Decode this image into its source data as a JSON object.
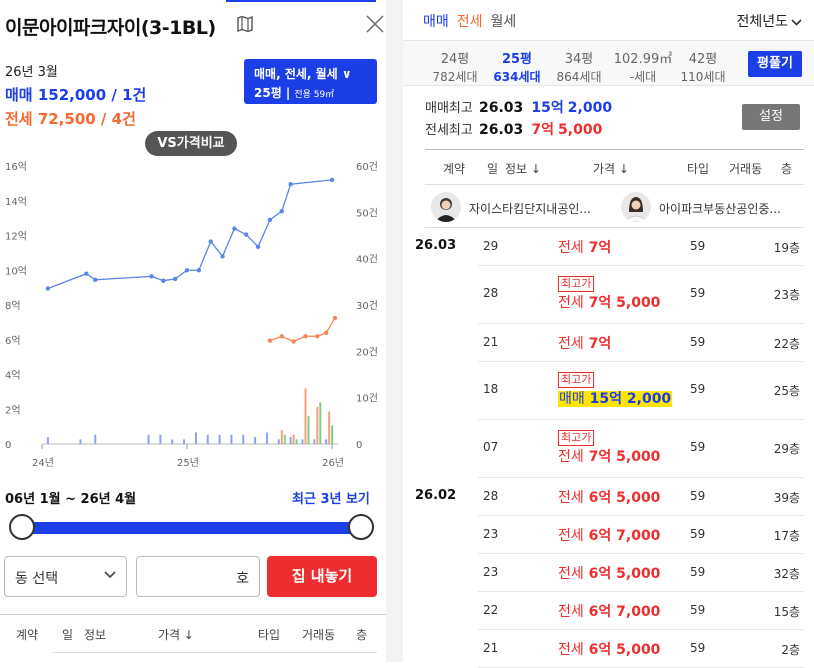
{
  "header": {
    "title": "이문아이파크자이(3-1BL)",
    "icons": [
      "map-icon",
      "close-icon"
    ]
  },
  "selected": {
    "date": "26년 3월",
    "sale_label": "매매 152,000 / 1건",
    "jeonse_label": "전세 72,500 / 4건"
  },
  "filter": {
    "types": "매매, 전세, 월세 ∨",
    "size": "25평",
    "size_detail": "전용 59㎡"
  },
  "vs_button": "VS가격비교",
  "chart_data": {
    "type": "line",
    "title": "",
    "x_ticks": [
      "24년",
      "25년",
      "26년"
    ],
    "y_left_ticks": [
      "16억",
      "14억",
      "12억",
      "10억",
      "8억",
      "6억",
      "4억",
      "2억",
      "0"
    ],
    "y_right_ticks": [
      "60건",
      "50건",
      "40건",
      "30건",
      "20건",
      "10건",
      "0"
    ],
    "ylim_left": [
      0,
      16
    ],
    "ylim_right": [
      0,
      60
    ],
    "xlim": [
      0,
      1
    ],
    "series": [
      {
        "name": "매매",
        "color": "#5b86e5",
        "axis": "left",
        "points": [
          [
            0.02,
            8.95
          ],
          [
            0.15,
            9.8
          ],
          [
            0.18,
            9.45
          ],
          [
            0.37,
            9.65
          ],
          [
            0.41,
            9.4
          ],
          [
            0.45,
            9.5
          ],
          [
            0.49,
            10.0
          ],
          [
            0.53,
            10.0
          ],
          [
            0.57,
            11.65
          ],
          [
            0.61,
            10.8
          ],
          [
            0.65,
            12.4
          ],
          [
            0.69,
            12.05
          ],
          [
            0.73,
            11.35
          ],
          [
            0.77,
            12.9
          ],
          [
            0.81,
            13.4
          ],
          [
            0.84,
            14.95
          ],
          [
            0.98,
            15.2
          ]
        ]
      },
      {
        "name": "전세",
        "color": "#f4865a",
        "axis": "left",
        "points": [
          [
            0.77,
            5.95
          ],
          [
            0.81,
            6.2
          ],
          [
            0.85,
            5.9
          ],
          [
            0.89,
            6.2
          ],
          [
            0.93,
            6.2
          ],
          [
            0.96,
            6.4
          ],
          [
            0.99,
            7.25
          ]
        ]
      }
    ],
    "volume": {
      "axis": "right",
      "sale_color": "#8ca4ef",
      "jeonse_color": "#f4a07a",
      "monthly_color": "#7fcf7f",
      "bars": [
        {
          "x": 0.02,
          "sale": 1.5
        },
        {
          "x": 0.13,
          "sale": 1
        },
        {
          "x": 0.18,
          "sale": 2
        },
        {
          "x": 0.36,
          "sale": 2
        },
        {
          "x": 0.4,
          "sale": 2
        },
        {
          "x": 0.44,
          "sale": 1
        },
        {
          "x": 0.48,
          "sale": 1
        },
        {
          "x": 0.52,
          "sale": 2.5
        },
        {
          "x": 0.56,
          "sale": 2
        },
        {
          "x": 0.6,
          "sale": 2
        },
        {
          "x": 0.64,
          "sale": 2
        },
        {
          "x": 0.68,
          "sale": 2
        },
        {
          "x": 0.72,
          "sale": 1.5
        },
        {
          "x": 0.76,
          "sale": 2.5
        },
        {
          "x": 0.8,
          "sale": 1,
          "jeonse": 3,
          "monthly": 2
        },
        {
          "x": 0.84,
          "sale": 1.5,
          "jeonse": 2,
          "monthly": 1
        },
        {
          "x": 0.88,
          "sale": 1,
          "jeonse": 12,
          "monthly": 6
        },
        {
          "x": 0.92,
          "sale": 1,
          "jeonse": 8,
          "monthly": 9
        },
        {
          "x": 0.96,
          "sale": 1,
          "jeonse": 7,
          "monthly": 4
        }
      ]
    }
  },
  "range": {
    "label": "06년 1월 ~ 26년 4월",
    "recent_link": "최근 3년 보기"
  },
  "controls": {
    "dong_select": "동 선택",
    "ho_input": "호",
    "collect_button": "집 내놓기"
  },
  "left_table_headers": [
    "계약",
    "일",
    "정보",
    "가격 ↓",
    "타입",
    "거래동",
    "층"
  ],
  "right": {
    "trade_tabs": [
      "매매",
      "전세",
      "월세"
    ],
    "year_select": "전체년도",
    "sizes": [
      {
        "p": "24평",
        "h": "782세대",
        "active": false
      },
      {
        "p": "25평",
        "h": "634세대",
        "active": true
      },
      {
        "p": "34평",
        "h": "864세대",
        "active": false
      },
      {
        "p": "102.99㎡",
        "h": "-세대",
        "active": false
      },
      {
        "p": "42평",
        "h": "110세대",
        "active": false
      }
    ],
    "pyeong_button": "평풀기",
    "max_sale": {
      "label": "매매최고",
      "date": "26.03",
      "eok": "15억",
      "rest": "2,000"
    },
    "max_jeonse": {
      "label": "전세최고",
      "date": "26.03",
      "eok": "7억",
      "rest": "5,000"
    },
    "setting_button": "설정",
    "headers": [
      "계약",
      "일",
      "정보 ↓",
      "가격 ↓",
      "타입",
      "거래동",
      "층"
    ],
    "agents": [
      "자이스타킴단지내공인...",
      "아이파크부동산공인중..."
    ],
    "max_badge": "최고가",
    "rows": [
      {
        "month": "26.03",
        "day": "29",
        "type_label": "전세",
        "eok": "7억",
        "rest": "",
        "kind": "jeonse",
        "area": "59",
        "floor": "19층",
        "max": false,
        "hl": false
      },
      {
        "month": "",
        "day": "28",
        "type_label": "전세",
        "eok": "7억",
        "rest": "5,000",
        "kind": "jeonse",
        "area": "59",
        "floor": "23층",
        "max": true,
        "hl": false
      },
      {
        "month": "",
        "day": "21",
        "type_label": "전세",
        "eok": "7억",
        "rest": "",
        "kind": "jeonse",
        "area": "59",
        "floor": "22층",
        "max": false,
        "hl": false
      },
      {
        "month": "",
        "day": "18",
        "type_label": "매매",
        "eok": "15억",
        "rest": "2,000",
        "kind": "sale",
        "area": "59",
        "floor": "25층",
        "max": true,
        "hl": true
      },
      {
        "month": "",
        "day": "07",
        "type_label": "전세",
        "eok": "7억",
        "rest": "5,000",
        "kind": "jeonse",
        "area": "59",
        "floor": "29층",
        "max": true,
        "hl": false
      },
      {
        "month": "26.02",
        "day": "28",
        "type_label": "전세",
        "eok": "6억",
        "rest": "5,000",
        "kind": "jeonse",
        "area": "59",
        "floor": "39층",
        "max": false,
        "hl": false
      },
      {
        "month": "",
        "day": "23",
        "type_label": "전세",
        "eok": "6억",
        "rest": "7,000",
        "kind": "jeonse",
        "area": "59",
        "floor": "17층",
        "max": false,
        "hl": false
      },
      {
        "month": "",
        "day": "23",
        "type_label": "전세",
        "eok": "6억",
        "rest": "5,000",
        "kind": "jeonse",
        "area": "59",
        "floor": "32층",
        "max": false,
        "hl": false
      },
      {
        "month": "",
        "day": "22",
        "type_label": "전세",
        "eok": "6억",
        "rest": "7,000",
        "kind": "jeonse",
        "area": "59",
        "floor": "15층",
        "max": false,
        "hl": false
      },
      {
        "month": "",
        "day": "21",
        "type_label": "전세",
        "eok": "6억",
        "rest": "5,000",
        "kind": "jeonse",
        "area": "59",
        "floor": "2층",
        "max": false,
        "hl": false
      }
    ]
  }
}
